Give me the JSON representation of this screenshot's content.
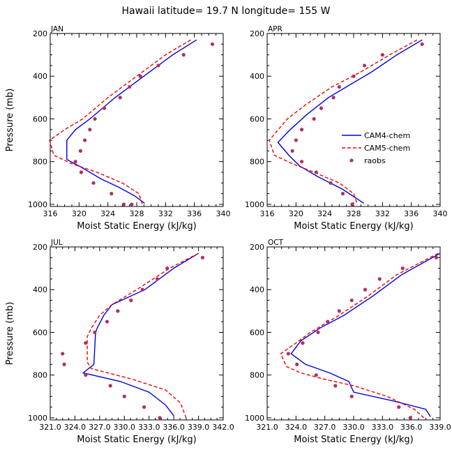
{
  "title": "Hawaii   latitude= 19.7 N longitude= 155 W",
  "legend": {
    "entries": [
      {
        "name": "CAM4-chem",
        "color": "#0000dd",
        "style": "solid"
      },
      {
        "name": "CAM5-chem",
        "color": "#ee0000",
        "style": "dashed"
      },
      {
        "name": "raobs",
        "color": "#b03060",
        "style": "dot"
      }
    ]
  },
  "chart_data": [
    {
      "type": "line",
      "panel": "JAN",
      "xlabel": "Moist Static Energy (kJ/kg)",
      "ylabel": "Pressure (mb)",
      "xlim": [
        316,
        340
      ],
      "ylim": [
        1010,
        200
      ],
      "xticks": [
        316,
        320,
        324,
        328,
        332,
        336,
        340
      ],
      "xtick_labels": [
        "316",
        "320",
        "324",
        "328",
        "332",
        "336",
        "340"
      ],
      "yticks": [
        200,
        400,
        600,
        800,
        1000
      ],
      "ytick_labels": [
        "200",
        "400",
        "600",
        "800",
        "1000"
      ],
      "series": [
        {
          "name": "CAM4-chem",
          "x": [
            336.3,
            333.0,
            329.0,
            325.0,
            321.5,
            319.5,
            318.3,
            318.3,
            320.5,
            323.0,
            325.5,
            327.7,
            329.1
          ],
          "y": [
            230,
            300,
            400,
            500,
            600,
            650,
            700,
            790,
            830,
            880,
            920,
            960,
            995
          ]
        },
        {
          "name": "CAM5-chem",
          "x": [
            335.5,
            332.0,
            328.0,
            324.0,
            320.5,
            318.0,
            315.9,
            316.5,
            319.0,
            322.5,
            326.0,
            328.3,
            328.8
          ],
          "y": [
            230,
            300,
            400,
            500,
            600,
            650,
            700,
            770,
            810,
            850,
            900,
            950,
            1000
          ]
        },
        {
          "name": "raobs",
          "x": [
            338.5,
            334.5,
            331.0,
            328.5,
            327.0,
            325.7,
            323.5,
            322.2,
            321.5,
            320.8,
            320.2,
            319.5,
            320.3,
            322.0,
            324.5,
            326.2,
            327.3
          ],
          "y": [
            250,
            300,
            350,
            400,
            450,
            500,
            550,
            600,
            650,
            700,
            750,
            800,
            850,
            900,
            950,
            1000,
            1000
          ]
        }
      ]
    },
    {
      "type": "line",
      "panel": "APR",
      "xlabel": "Moist Static Energy (kJ/kg)",
      "ylabel": "",
      "xlim": [
        316,
        340
      ],
      "ylim": [
        1010,
        200
      ],
      "xticks": [
        316,
        320,
        324,
        328,
        332,
        336,
        340
      ],
      "xtick_labels": [
        "316",
        "320",
        "324",
        "328",
        "332",
        "336",
        "340"
      ],
      "yticks": [
        200,
        400,
        600,
        800,
        1000
      ],
      "ytick_labels": [
        "200",
        "400",
        "600",
        "800",
        "1000"
      ],
      "series": [
        {
          "name": "CAM4-chem",
          "x": [
            337.5,
            334.0,
            330.5,
            327.0,
            324.5,
            321.5,
            319.2,
            317.5,
            319.0,
            320.5,
            323.0,
            326.5,
            329.4
          ],
          "y": [
            230,
            300,
            380,
            450,
            500,
            580,
            650,
            710,
            770,
            820,
            870,
            930,
            995
          ]
        },
        {
          "name": "CAM5-chem",
          "x": [
            336.8,
            333.0,
            329.0,
            325.0,
            321.5,
            318.8,
            316.3,
            317.0,
            319.5,
            322.5,
            326.0,
            328.0,
            328.5
          ],
          "y": [
            230,
            300,
            380,
            450,
            530,
            600,
            700,
            770,
            810,
            850,
            900,
            950,
            1000
          ]
        },
        {
          "name": "raobs",
          "x": [
            337.5,
            332.0,
            329.5,
            328.0,
            326.0,
            325.2,
            323.5,
            322.5,
            320.8,
            320.0,
            319.5,
            320.8,
            322.8,
            324.8,
            326.5,
            327.8
          ],
          "y": [
            250,
            300,
            350,
            400,
            450,
            500,
            550,
            600,
            650,
            700,
            750,
            800,
            850,
            900,
            950,
            1000
          ]
        }
      ]
    },
    {
      "type": "line",
      "panel": "JUL",
      "xlabel": "Moist Static Energy (kJ/kg)",
      "ylabel": "Pressure (mb)",
      "xlim": [
        321,
        342
      ],
      "ylim": [
        1010,
        200
      ],
      "xticks": [
        321,
        324,
        327,
        330,
        333,
        336,
        339,
        342
      ],
      "xtick_labels": [
        "321.0",
        "324.0",
        "327.0",
        "330.0",
        "333.0",
        "336.0",
        "339.0",
        "342.0"
      ],
      "yticks": [
        200,
        400,
        600,
        800,
        1000
      ],
      "ytick_labels": [
        "200",
        "400",
        "600",
        "800",
        "1000"
      ],
      "series": [
        {
          "name": "CAM4-chem",
          "x": [
            339.0,
            336.0,
            332.5,
            328.5,
            327.5,
            326.7,
            326.5,
            326.3,
            325.0,
            329.5,
            333.0,
            335.0,
            336.0
          ],
          "y": [
            230,
            300,
            400,
            470,
            520,
            580,
            600,
            750,
            790,
            830,
            880,
            940,
            990
          ]
        },
        {
          "name": "CAM5-chem",
          "x": [
            339.0,
            335.5,
            331.5,
            328.5,
            327.0,
            326.0,
            325.5,
            325.5,
            326.0,
            331.0,
            335.0,
            336.8,
            337.6
          ],
          "y": [
            230,
            300,
            400,
            470,
            520,
            580,
            620,
            740,
            770,
            820,
            870,
            930,
            1010
          ]
        },
        {
          "name": "raobs",
          "x": [
            339.5,
            335.2,
            334.0,
            332.2,
            330.8,
            329.2,
            327.9,
            326.4,
            325.3,
            322.5,
            322.7,
            325.3,
            328.3,
            330.0,
            332.4,
            334.3
          ],
          "y": [
            250,
            300,
            350,
            400,
            450,
            500,
            550,
            600,
            650,
            700,
            750,
            800,
            850,
            900,
            950,
            1000
          ]
        }
      ]
    },
    {
      "type": "line",
      "panel": "OCT",
      "xlabel": "Moist Static Energy (kJ/kg)",
      "ylabel": "",
      "xlim": [
        321,
        339
      ],
      "ylim": [
        1010,
        200
      ],
      "xticks": [
        321,
        324,
        327,
        330,
        333,
        336,
        339
      ],
      "xtick_labels": [
        "321.0",
        "324.0",
        "327.0",
        "330.0",
        "333.0",
        "336.0",
        "339.0"
      ],
      "yticks": [
        200,
        400,
        600,
        800,
        1000
      ],
      "ytick_labels": [
        "200",
        "400",
        "600",
        "800",
        "1000"
      ],
      "series": [
        {
          "name": "CAM4-chem",
          "x": [
            339.0,
            335.0,
            332.0,
            329.0,
            326.5,
            324.5,
            323.5,
            325.0,
            327.5,
            329.5,
            330.0,
            334.0,
            337.5,
            338.0
          ],
          "y": [
            230,
            330,
            430,
            520,
            580,
            640,
            700,
            750,
            790,
            830,
            880,
            920,
            960,
            995
          ]
        },
        {
          "name": "CAM5-chem",
          "x": [
            338.8,
            334.5,
            331.5,
            328.5,
            325.5,
            324.0,
            322.4,
            323.0,
            324.5,
            327.0,
            330.0,
            333.5,
            336.3,
            337.3
          ],
          "y": [
            230,
            330,
            430,
            520,
            600,
            650,
            700,
            760,
            790,
            820,
            850,
            900,
            960,
            1000
          ]
        },
        {
          "name": "raobs",
          "x": [
            338.6,
            335.1,
            332.7,
            331.2,
            329.8,
            328.5,
            327.3,
            326.3,
            324.7,
            323.2,
            324.1,
            326.1,
            328.1,
            329.8,
            334.7,
            335.9
          ],
          "y": [
            250,
            300,
            350,
            400,
            450,
            500,
            550,
            600,
            650,
            700,
            750,
            800,
            850,
            900,
            950,
            1000
          ]
        }
      ]
    }
  ]
}
